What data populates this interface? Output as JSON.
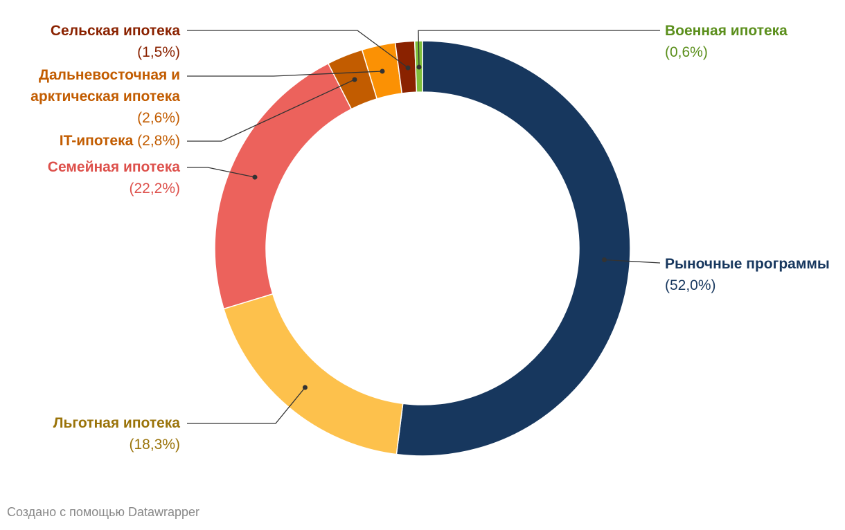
{
  "chart_data": {
    "type": "pie",
    "variant": "donut",
    "slices": [
      {
        "name": "Рыночные программы",
        "value": 52.0,
        "value_label": "(52,0%)",
        "color": "#17375e",
        "label_color": "#17375e"
      },
      {
        "name": "Льготная ипотека",
        "value": 18.3,
        "value_label": "(18,3%)",
        "color": "#fdc14c",
        "label_color": "#9a7309"
      },
      {
        "name": "Семейная ипотека",
        "value": 22.2,
        "value_label": "(22,2%)",
        "color": "#ec625c",
        "label_color": "#dd504b"
      },
      {
        "name": "IT-ипотека",
        "value": 2.8,
        "value_label": "(2,8%)",
        "color": "#c25c00",
        "label_color": "#c25c00"
      },
      {
        "name": "Дальневосточная и арктическая ипотека",
        "value": 2.6,
        "value_label": "(2,6%)",
        "color": "#fb9104",
        "label_color": "#c25c00"
      },
      {
        "name": "Сельская ипотека",
        "value": 1.5,
        "value_label": "(1,5%)",
        "color": "#8a2200",
        "label_color": "#8a2200"
      },
      {
        "name": "Военная ипотека",
        "value": 0.6,
        "value_label": "(0,6%)",
        "color": "#7fbf3b",
        "label_color": "#5b8f1c"
      }
    ]
  },
  "labels": {
    "market_name": "Рыночные программы",
    "market_pct": "(52,0%)",
    "preferential_name": "Льготная ипотека",
    "preferential_pct": "(18,3%)",
    "family_name": "Семейная ипотека",
    "family_pct": "(22,2%)",
    "it_name": "IT-ипотека",
    "it_pct": "(2,8%)",
    "fareast_name_line1": "Дальневосточная и",
    "fareast_name_line2": "арктическая ипотека",
    "fareast_pct": "(2,6%)",
    "rural_name": "Сельская ипотека",
    "rural_pct": "(1,5%)",
    "military_name": "Военная ипотека",
    "military_pct": "(0,6%)"
  },
  "credit": "Создано с помощью Datawrapper"
}
